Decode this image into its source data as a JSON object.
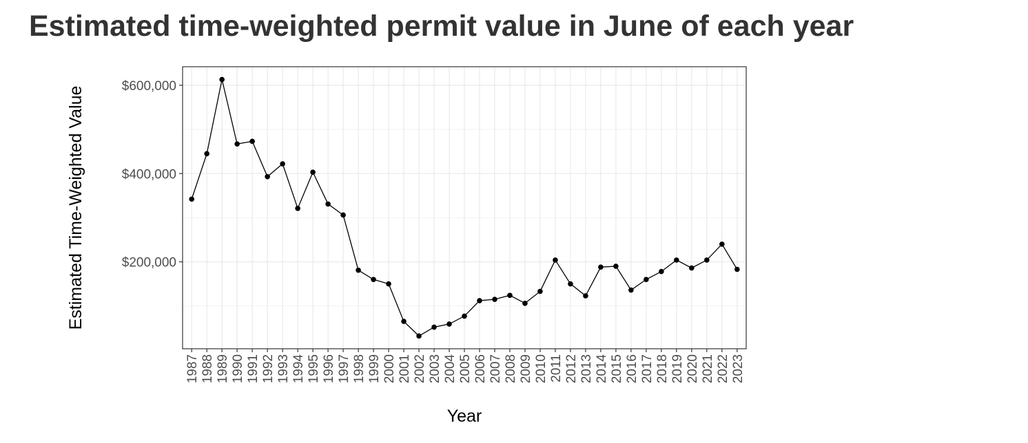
{
  "chart_data": {
    "type": "line",
    "title": "Estimated time-weighted permit value in June of each year",
    "xlabel": "Year",
    "ylabel": "Estimated Time-Weighted Value",
    "x": [
      1987,
      1988,
      1989,
      1990,
      1991,
      1992,
      1993,
      1994,
      1995,
      1996,
      1997,
      1998,
      1999,
      2000,
      2001,
      2002,
      2003,
      2004,
      2005,
      2006,
      2007,
      2008,
      2009,
      2010,
      2011,
      2012,
      2013,
      2014,
      2015,
      2016,
      2017,
      2018,
      2019,
      2020,
      2021,
      2022,
      2023
    ],
    "series": [
      {
        "values": [
          342000,
          445000,
          613000,
          467000,
          473000,
          393000,
          422000,
          321000,
          403000,
          331000,
          306000,
          181000,
          160000,
          150000,
          65000,
          32000,
          52000,
          59000,
          77000,
          112000,
          115000,
          124000,
          106000,
          133000,
          204000,
          150000,
          123000,
          188000,
          190000,
          136000,
          160000,
          178000,
          204000,
          186000,
          204000,
          240000,
          183000
        ],
        "color": "#000000"
      }
    ],
    "yticks": [
      200000,
      400000,
      600000
    ],
    "ytick_labels": [
      "$200,000",
      "$400,000",
      "$600,000"
    ],
    "ylim": [
      3000,
      642000
    ],
    "xlim": [
      1986.4,
      2023.6
    ],
    "grid": true,
    "x_tick_rotation": "vertical"
  }
}
